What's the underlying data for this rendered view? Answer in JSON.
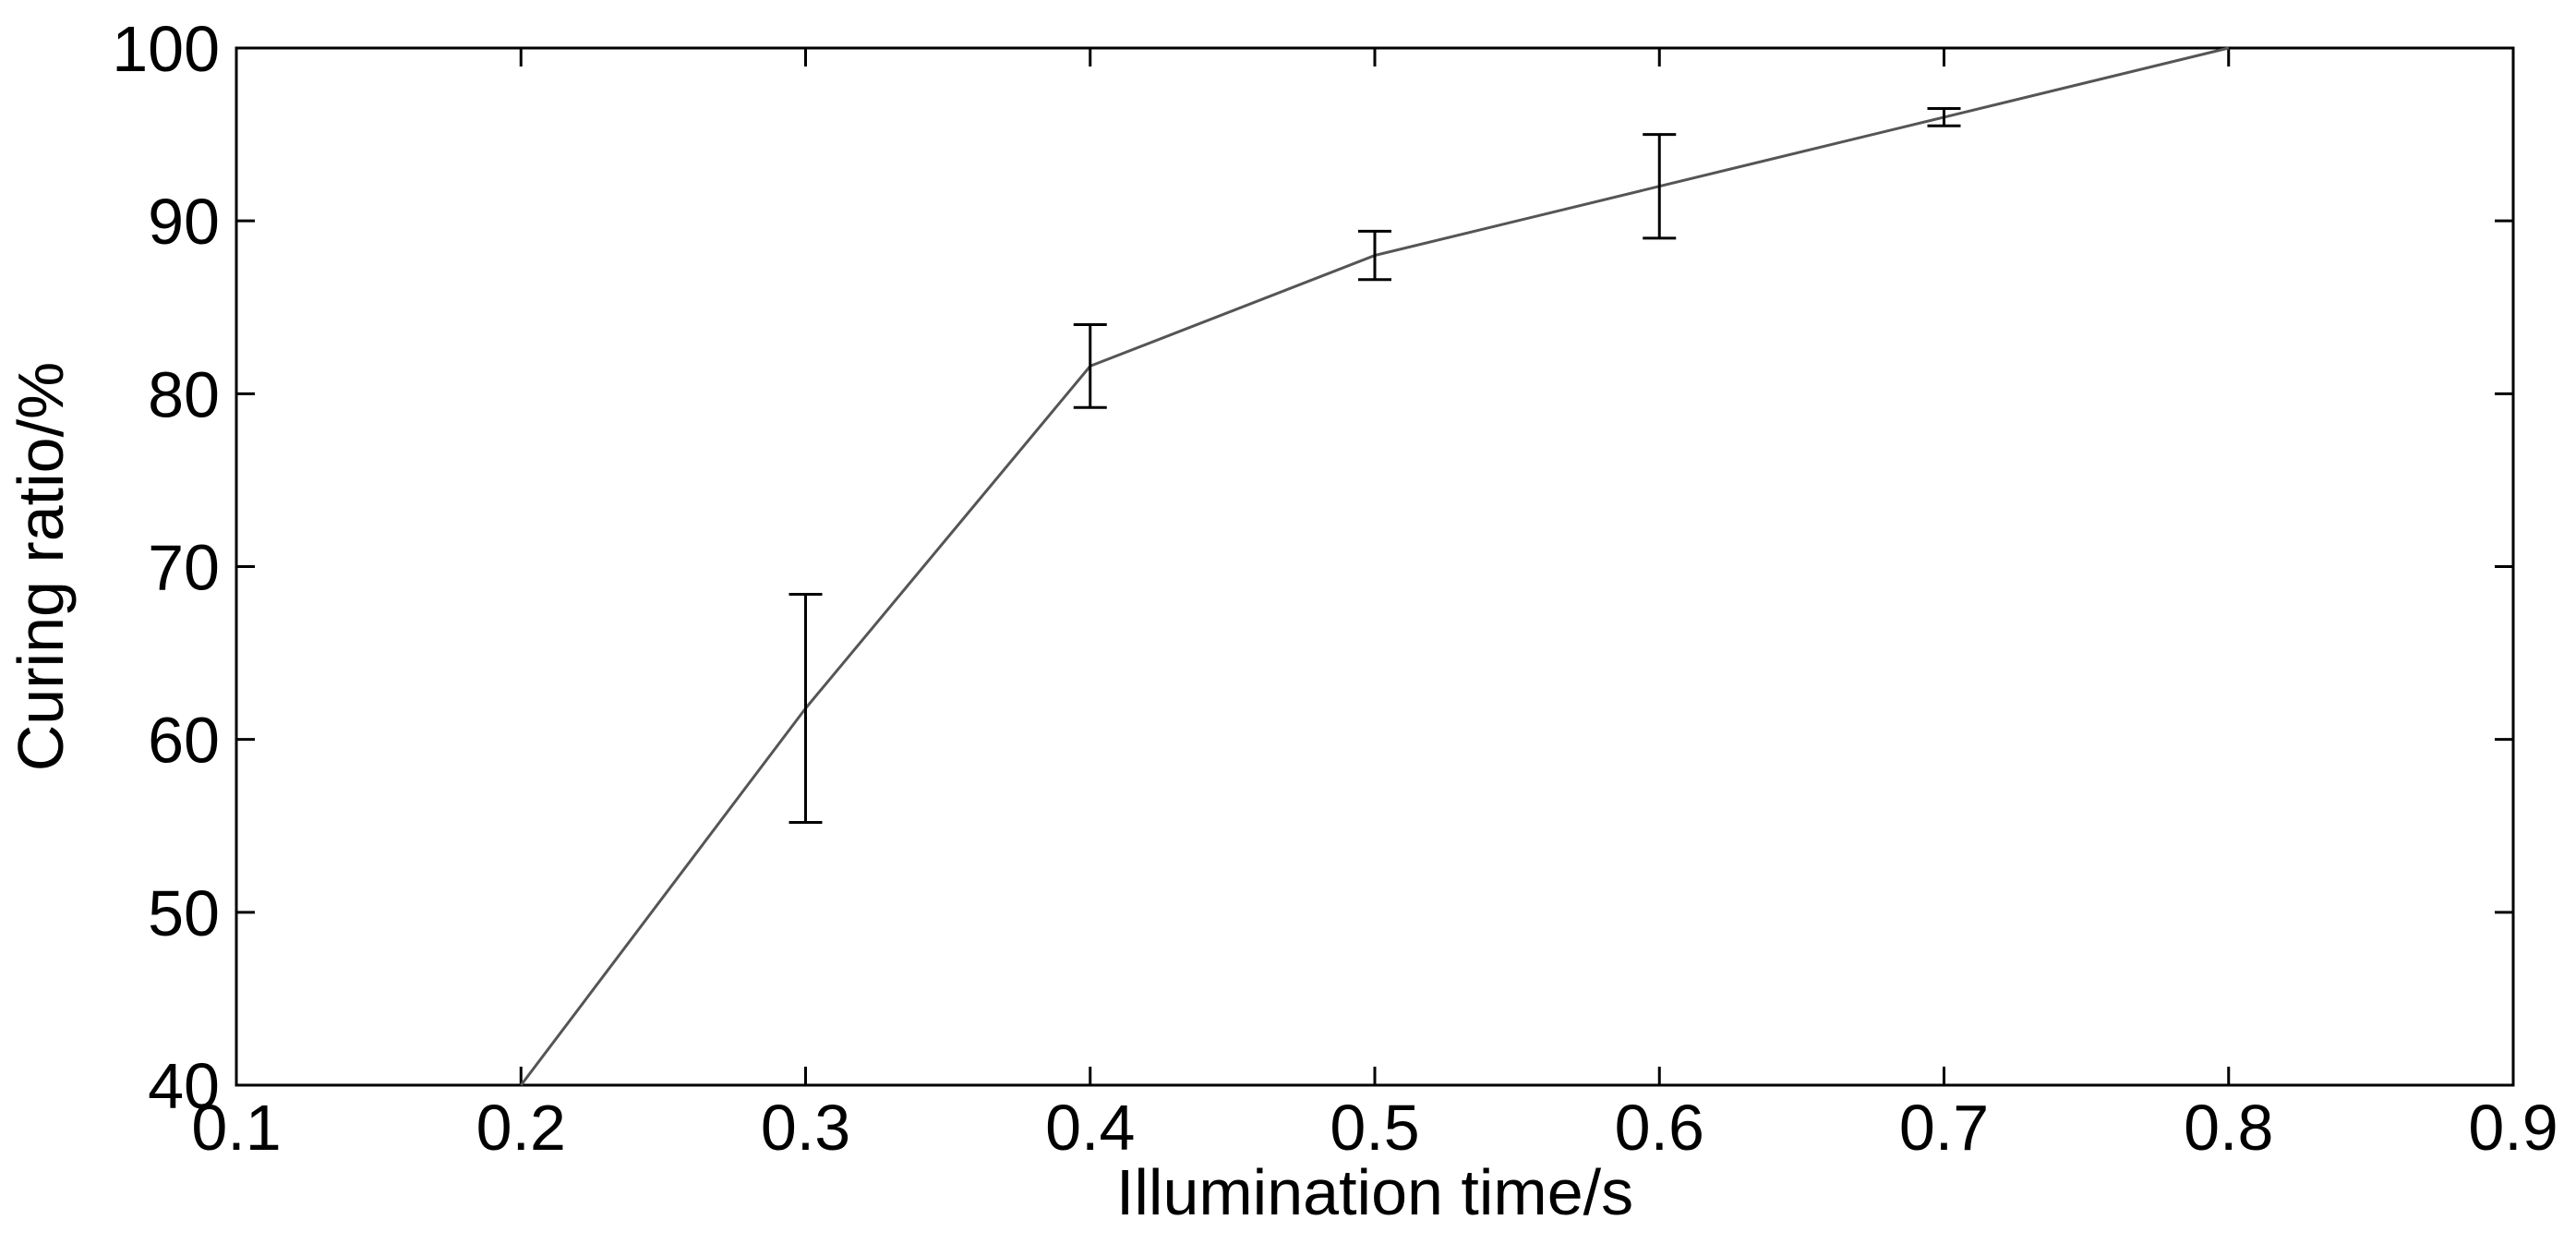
{
  "chart_data": {
    "type": "line",
    "title": "",
    "xlabel": "Illumination time/s",
    "ylabel": "Curing ratio/%",
    "xlim": [
      0.1,
      0.9
    ],
    "ylim": [
      40,
      100
    ],
    "x_ticks": [
      "0.1",
      "0.2",
      "0.3",
      "0.4",
      "0.5",
      "0.6",
      "0.7",
      "0.8",
      "0.9"
    ],
    "y_ticks": [
      "40",
      "50",
      "60",
      "70",
      "80",
      "90",
      "100"
    ],
    "grid": false,
    "legend": "none",
    "series": [
      {
        "x": [
          0.2,
          0.3,
          0.4,
          0.5,
          0.6,
          0.7,
          0.8
        ],
        "y": [
          40,
          61.8,
          81.6,
          88,
          92,
          96,
          100
        ],
        "error": [
          0,
          6.6,
          2.4,
          1.4,
          3.0,
          0.5,
          0
        ]
      }
    ],
    "colors": {
      "line": "#555555",
      "error_bars": "#000000",
      "axes": "#000000"
    }
  }
}
